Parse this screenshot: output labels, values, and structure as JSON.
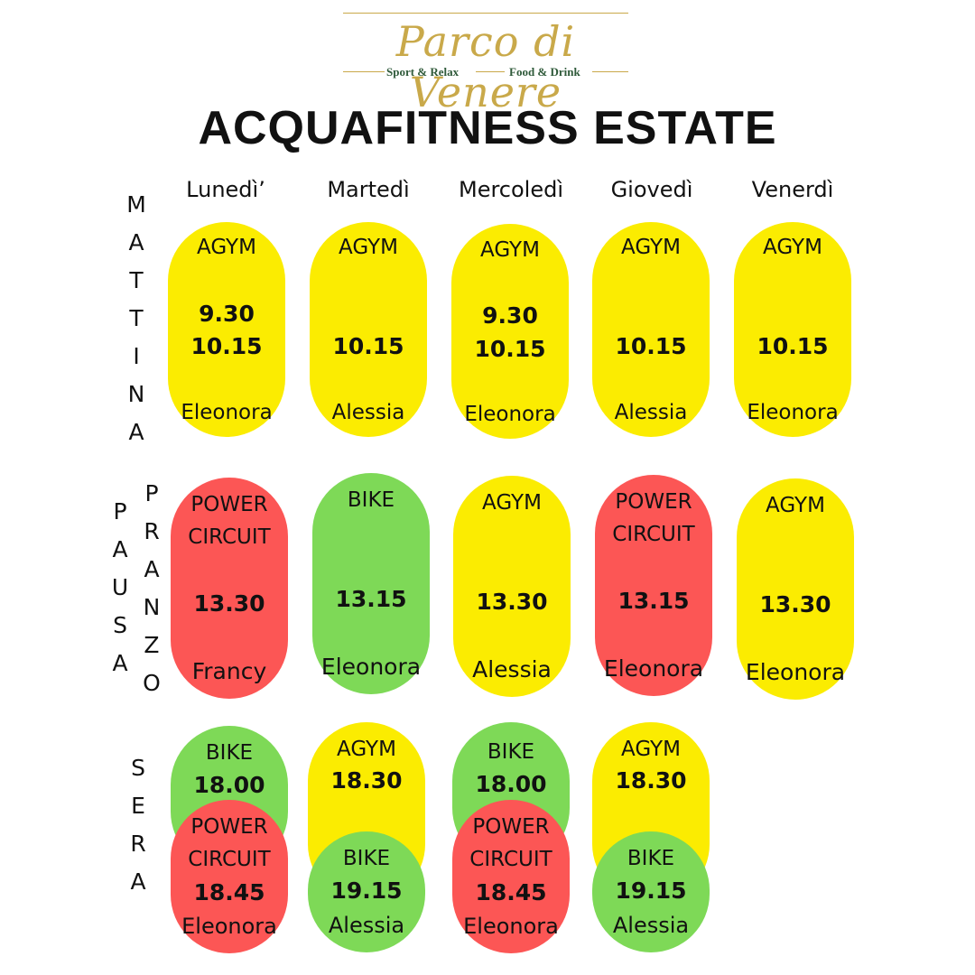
{
  "logo": {
    "name": "Parco di Venere",
    "left": "Sport & Relax",
    "right": "Food & Drink"
  },
  "title": "ACQUAFITNESS ESTATE",
  "days": [
    "Lunedì’",
    "Martedì",
    "Mercoledì",
    "Giovedì",
    "Venerdì"
  ],
  "rows": {
    "mattina": [
      "M",
      "A",
      "T",
      "T",
      "I",
      "N",
      "A"
    ],
    "pausa": [
      "P",
      "A",
      "U",
      "S",
      "A"
    ],
    "pranzo": [
      "P",
      "R",
      "A",
      "N",
      "Z",
      "O"
    ],
    "sera": [
      "S",
      "E",
      "R",
      "A"
    ]
  },
  "mattina": [
    {
      "activity": "AGYM",
      "time1": "9.30",
      "time2": "10.15",
      "trainer": "Eleonora"
    },
    {
      "activity": "AGYM",
      "time2": "10.15",
      "trainer": "Alessia"
    },
    {
      "activity": "AGYM",
      "time1": "9.30",
      "time2": "10.15",
      "trainer": "Eleonora"
    },
    {
      "activity": "AGYM",
      "time2": "10.15",
      "trainer": "Alessia"
    },
    {
      "activity": "AGYM",
      "time2": "10.15",
      "trainer": "Eleonora"
    }
  ],
  "pranzo": [
    {
      "activity1": "POWER",
      "activity2": "CIRCUIT",
      "time": "13.30",
      "trainer": "Francy"
    },
    {
      "activity1": "BIKE",
      "time": "13.15",
      "trainer": "Eleonora"
    },
    {
      "activity1": "AGYM",
      "time": "13.30",
      "trainer": "Alessia"
    },
    {
      "activity1": "POWER",
      "activity2": "CIRCUIT",
      "time": "13.15",
      "trainer": "Eleonora"
    },
    {
      "activity1": "AGYM",
      "time": "13.30",
      "trainer": "Eleonora"
    }
  ],
  "sera": [
    {
      "top": {
        "activity": "BIKE",
        "time": "18.00"
      },
      "bottom": {
        "activity1": "POWER",
        "activity2": "CIRCUIT",
        "time": "18.45",
        "trainer": "Eleonora"
      }
    },
    {
      "top": {
        "activity": "AGYM",
        "time": "18.30"
      },
      "bottom": {
        "activity1": "BIKE",
        "time": "19.15",
        "trainer": "Alessia"
      }
    },
    {
      "top": {
        "activity": "BIKE",
        "time": "18.00"
      },
      "bottom": {
        "activity1": "POWER",
        "activity2": "CIRCUIT",
        "time": "18.45",
        "trainer": "Eleonora"
      }
    },
    {
      "top": {
        "activity": "AGYM",
        "time": "18.30"
      },
      "bottom": {
        "activity1": "BIKE",
        "time": "19.15",
        "trainer": "Alessia"
      }
    }
  ],
  "colors": {
    "agym": "#fbec01",
    "power_circuit": "#fc5655",
    "bike": "#7ed957",
    "logo_gold": "#c9a94a"
  }
}
